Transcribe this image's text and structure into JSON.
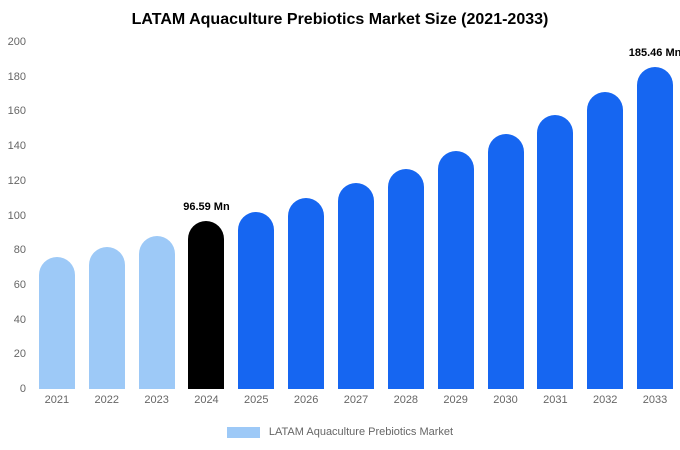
{
  "title": "LATAM Aquaculture Prebiotics Market Size (2021-2033)",
  "chart_data": {
    "type": "bar",
    "title": "LATAM Aquaculture Prebiotics Market Size (2021-2033)",
    "categories": [
      "2021",
      "2022",
      "2023",
      "2024",
      "2025",
      "2026",
      "2027",
      "2028",
      "2029",
      "2030",
      "2031",
      "2032",
      "2033"
    ],
    "values": [
      76,
      82,
      88,
      96.59,
      102,
      110,
      119,
      127,
      137,
      147,
      158,
      171,
      185.46
    ],
    "bar_colors": [
      "#9dc9f7",
      "#9dc9f7",
      "#9dc9f7",
      "#000000",
      "#1666f1",
      "#1666f1",
      "#1666f1",
      "#1666f1",
      "#1666f1",
      "#1666f1",
      "#1666f1",
      "#1666f1",
      "#1666f1"
    ],
    "xlabel": "",
    "ylabel": "",
    "ylim": [
      0,
      200
    ],
    "yticks": [
      0,
      20,
      40,
      60,
      80,
      100,
      120,
      140,
      160,
      180,
      200
    ],
    "grid": false,
    "annotations": [
      {
        "index": 3,
        "category": "2024",
        "text": "96.59 Mn"
      },
      {
        "index": 12,
        "category": "2033",
        "text": "185.46 Mn"
      }
    ],
    "legend": {
      "position": "bottom",
      "label": "LATAM Aquaculture Prebiotics Market",
      "swatch_color": "#9dc9f7"
    },
    "colors": {
      "light_blue": "#9dc9f7",
      "blue": "#1666f1",
      "highlight_black": "#000000",
      "tick_text": "#666666"
    }
  }
}
